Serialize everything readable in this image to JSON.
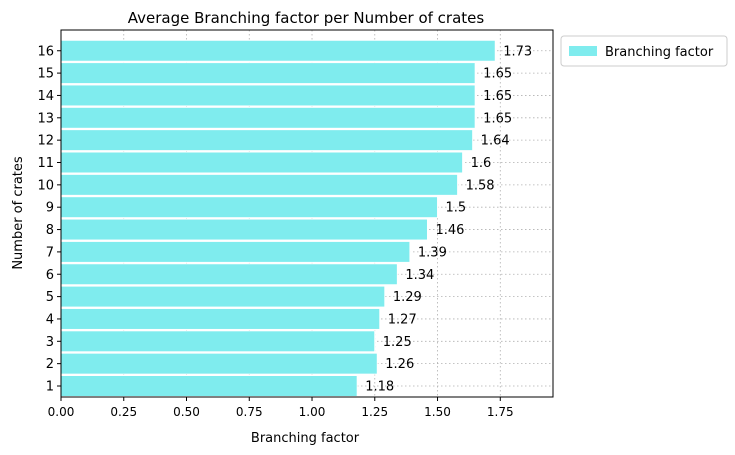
{
  "chart_data": {
    "type": "bar",
    "orientation": "horizontal",
    "title": "Average Branching factor per Number of crates",
    "xlabel": "Branching factor",
    "ylabel": "Number of crates",
    "xlim": [
      0,
      1.96
    ],
    "xticks": [
      "0.00",
      "0.25",
      "0.50",
      "0.75",
      "1.00",
      "1.25",
      "1.50",
      "1.75"
    ],
    "grid": true,
    "legend_position": "outside-top-right",
    "bar_color": "#7FECEE",
    "series": [
      {
        "name": "Branching factor",
        "categories": [
          "1",
          "2",
          "3",
          "4",
          "5",
          "6",
          "7",
          "8",
          "9",
          "10",
          "11",
          "12",
          "13",
          "14",
          "15",
          "16"
        ],
        "values": [
          1.18,
          1.26,
          1.25,
          1.27,
          1.29,
          1.34,
          1.39,
          1.46,
          1.5,
          1.58,
          1.6,
          1.64,
          1.65,
          1.65,
          1.65,
          1.73
        ],
        "labels": [
          "1.18",
          "1.26",
          "1.25",
          "1.27",
          "1.29",
          "1.34",
          "1.39",
          "1.46",
          "1.5",
          "1.58",
          "1.6",
          "1.64",
          "1.65",
          "1.65",
          "1.65",
          "1.73"
        ]
      }
    ]
  }
}
